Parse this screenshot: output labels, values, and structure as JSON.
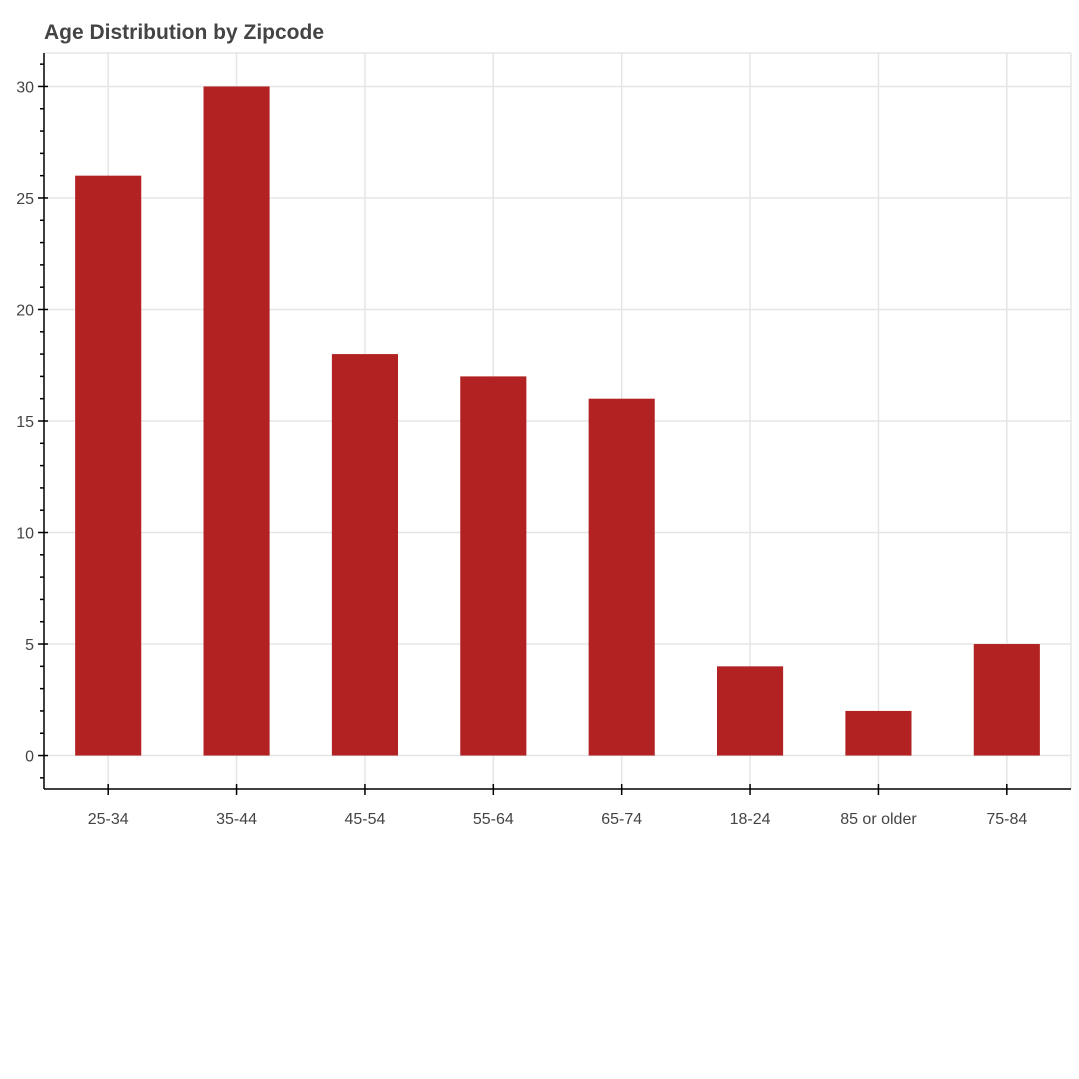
{
  "chart_data": {
    "type": "bar",
    "title": "Age Distribution by Zipcode",
    "xlabel": "",
    "ylabel": "",
    "categories": [
      "25-34",
      "35-44",
      "45-54",
      "55-64",
      "65-74",
      "18-24",
      "85 or older",
      "75-84"
    ],
    "values": [
      26,
      30,
      18,
      17,
      16,
      4,
      2,
      5
    ],
    "ylim": [
      -1.5,
      31.5
    ],
    "yticks": [
      0,
      5,
      10,
      15,
      20,
      25,
      30
    ],
    "grid": true,
    "legend": "none",
    "bar_color": "#b22222"
  }
}
